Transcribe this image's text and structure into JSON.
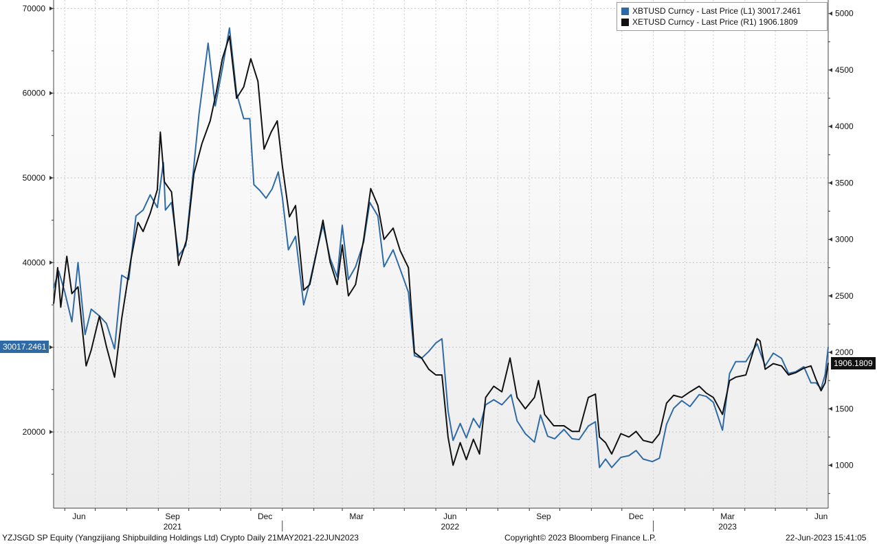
{
  "chart_data": {
    "type": "line",
    "title": "",
    "x_range": [
      "2021-05-21",
      "2023-06-22"
    ],
    "frequency": "Daily",
    "grid": true,
    "legend_placement": "top-right",
    "y_left": {
      "ticks": [
        20000,
        30000,
        40000,
        50000,
        60000,
        70000
      ],
      "tick_labels": [
        "20000",
        "",
        "40000",
        "50000",
        "60000",
        "70000"
      ],
      "range": [
        11000,
        71000
      ]
    },
    "y_right": {
      "ticks": [
        1000,
        1500,
        2000,
        2500,
        3000,
        3500,
        4000,
        4500,
        5000
      ],
      "tick_labels": [
        "1000",
        "1500",
        "2000",
        "2500",
        "3000",
        "3500",
        "4000",
        "4500",
        "5000"
      ],
      "range": [
        620,
        5120
      ]
    },
    "x_month_labels": [
      {
        "date": "2021-06-15",
        "label": "Jun"
      },
      {
        "date": "2021-09-15",
        "label": "Sep"
      },
      {
        "date": "2021-12-15",
        "label": "Dec"
      },
      {
        "date": "2022-03-15",
        "label": "Mar"
      },
      {
        "date": "2022-06-15",
        "label": "Jun"
      },
      {
        "date": "2022-09-15",
        "label": "Sep"
      },
      {
        "date": "2022-12-15",
        "label": "Dec"
      },
      {
        "date": "2023-03-15",
        "label": "Mar"
      },
      {
        "date": "2023-06-15",
        "label": "Jun"
      }
    ],
    "x_year_labels": [
      {
        "date": "2021-09-15",
        "label": "2021"
      },
      {
        "date": "2022-06-15",
        "label": "2022"
      },
      {
        "date": "2023-03-15",
        "label": "2023"
      }
    ],
    "year_dividers": [
      "2022-01-01",
      "2023-01-01"
    ],
    "series": [
      {
        "name": "XBTUSD Curncy - Last Price (L1) 30017.2461",
        "axis": "left",
        "color": "#2e6aa6",
        "last_value_label": "30017.2461",
        "points": [
          [
            "2021-05-21",
            37000
          ],
          [
            "2021-05-26",
            39000
          ],
          [
            "2021-06-01",
            36500
          ],
          [
            "2021-06-08",
            33000
          ],
          [
            "2021-06-14",
            40000
          ],
          [
            "2021-06-21",
            31500
          ],
          [
            "2021-06-27",
            34500
          ],
          [
            "2021-07-05",
            33700
          ],
          [
            "2021-07-12",
            32800
          ],
          [
            "2021-07-20",
            29800
          ],
          [
            "2021-07-27",
            38500
          ],
          [
            "2021-08-03",
            38000
          ],
          [
            "2021-08-10",
            45500
          ],
          [
            "2021-08-17",
            46200
          ],
          [
            "2021-08-24",
            48000
          ],
          [
            "2021-08-31",
            46500
          ],
          [
            "2021-09-06",
            51800
          ],
          [
            "2021-09-08",
            46200
          ],
          [
            "2021-09-14",
            47100
          ],
          [
            "2021-09-21",
            40800
          ],
          [
            "2021-09-28",
            42000
          ],
          [
            "2021-10-04",
            49000
          ],
          [
            "2021-10-11",
            57500
          ],
          [
            "2021-10-20",
            65900
          ],
          [
            "2021-10-27",
            58500
          ],
          [
            "2021-11-03",
            62900
          ],
          [
            "2021-11-10",
            67700
          ],
          [
            "2021-11-17",
            60000
          ],
          [
            "2021-11-24",
            57000
          ],
          [
            "2021-11-30",
            57000
          ],
          [
            "2021-12-04",
            49200
          ],
          [
            "2021-12-10",
            48500
          ],
          [
            "2021-12-16",
            47600
          ],
          [
            "2021-12-22",
            48700
          ],
          [
            "2021-12-28",
            50700
          ],
          [
            "2022-01-01",
            47700
          ],
          [
            "2022-01-07",
            41500
          ],
          [
            "2022-01-14",
            43100
          ],
          [
            "2022-01-22",
            35000
          ],
          [
            "2022-01-28",
            37700
          ],
          [
            "2022-02-04",
            41500
          ],
          [
            "2022-02-10",
            44400
          ],
          [
            "2022-02-17",
            40500
          ],
          [
            "2022-02-24",
            38300
          ],
          [
            "2022-03-01",
            44400
          ],
          [
            "2022-03-07",
            38000
          ],
          [
            "2022-03-14",
            39500
          ],
          [
            "2022-03-22",
            42400
          ],
          [
            "2022-03-28",
            47100
          ],
          [
            "2022-04-05",
            45500
          ],
          [
            "2022-04-11",
            39500
          ],
          [
            "2022-04-20",
            41500
          ],
          [
            "2022-04-27",
            39200
          ],
          [
            "2022-05-05",
            36500
          ],
          [
            "2022-05-11",
            29000
          ],
          [
            "2022-05-18",
            28700
          ],
          [
            "2022-05-25",
            29500
          ],
          [
            "2022-06-01",
            30500
          ],
          [
            "2022-06-07",
            31000
          ],
          [
            "2022-06-13",
            22500
          ],
          [
            "2022-06-18",
            19000
          ],
          [
            "2022-06-25",
            21000
          ],
          [
            "2022-07-01",
            19300
          ],
          [
            "2022-07-08",
            21600
          ],
          [
            "2022-07-14",
            20500
          ],
          [
            "2022-07-20",
            23200
          ],
          [
            "2022-07-28",
            23800
          ],
          [
            "2022-08-05",
            23200
          ],
          [
            "2022-08-14",
            24400
          ],
          [
            "2022-08-20",
            21300
          ],
          [
            "2022-08-28",
            19800
          ],
          [
            "2022-09-06",
            18800
          ],
          [
            "2022-09-12",
            22000
          ],
          [
            "2022-09-19",
            19500
          ],
          [
            "2022-09-26",
            19200
          ],
          [
            "2022-10-05",
            20300
          ],
          [
            "2022-10-13",
            19200
          ],
          [
            "2022-10-20",
            19100
          ],
          [
            "2022-10-29",
            20700
          ],
          [
            "2022-11-05",
            21200
          ],
          [
            "2022-11-09",
            15800
          ],
          [
            "2022-11-15",
            16800
          ],
          [
            "2022-11-21",
            15800
          ],
          [
            "2022-11-30",
            17000
          ],
          [
            "2022-12-08",
            17200
          ],
          [
            "2022-12-15",
            17800
          ],
          [
            "2022-12-22",
            16800
          ],
          [
            "2022-12-31",
            16500
          ],
          [
            "2023-01-07",
            16900
          ],
          [
            "2023-01-14",
            20900
          ],
          [
            "2023-01-21",
            22800
          ],
          [
            "2023-01-29",
            23700
          ],
          [
            "2023-02-06",
            23000
          ],
          [
            "2023-02-15",
            24400
          ],
          [
            "2023-02-22",
            24200
          ],
          [
            "2023-03-01",
            23500
          ],
          [
            "2023-03-10",
            20200
          ],
          [
            "2023-03-17",
            26900
          ],
          [
            "2023-03-23",
            28300
          ],
          [
            "2023-04-02",
            28300
          ],
          [
            "2023-04-13",
            30400
          ],
          [
            "2023-04-21",
            27800
          ],
          [
            "2023-04-29",
            29300
          ],
          [
            "2023-05-07",
            28700
          ],
          [
            "2023-05-14",
            26900
          ],
          [
            "2023-05-21",
            27100
          ],
          [
            "2023-05-29",
            27700
          ],
          [
            "2023-06-05",
            25800
          ],
          [
            "2023-06-10",
            25800
          ],
          [
            "2023-06-15",
            25100
          ],
          [
            "2023-06-19",
            26800
          ],
          [
            "2023-06-22",
            30017
          ]
        ]
      },
      {
        "name": "XETUSD Curncy - Last Price (R1) 1906.1809",
        "axis": "right",
        "color": "#111111",
        "last_value_label": "1906.1809",
        "points": [
          [
            "2021-05-21",
            2430
          ],
          [
            "2021-05-25",
            2750
          ],
          [
            "2021-05-28",
            2400
          ],
          [
            "2021-06-03",
            2850
          ],
          [
            "2021-06-08",
            2520
          ],
          [
            "2021-06-14",
            2580
          ],
          [
            "2021-06-22",
            1880
          ],
          [
            "2021-06-27",
            2020
          ],
          [
            "2021-07-05",
            2320
          ],
          [
            "2021-07-12",
            2050
          ],
          [
            "2021-07-20",
            1780
          ],
          [
            "2021-07-27",
            2300
          ],
          [
            "2021-08-05",
            2820
          ],
          [
            "2021-08-12",
            3150
          ],
          [
            "2021-08-17",
            3070
          ],
          [
            "2021-08-24",
            3230
          ],
          [
            "2021-08-31",
            3440
          ],
          [
            "2021-09-03",
            3950
          ],
          [
            "2021-09-07",
            3510
          ],
          [
            "2021-09-14",
            3420
          ],
          [
            "2021-09-21",
            2770
          ],
          [
            "2021-09-29",
            3000
          ],
          [
            "2021-10-06",
            3580
          ],
          [
            "2021-10-14",
            3850
          ],
          [
            "2021-10-22",
            4050
          ],
          [
            "2021-10-28",
            4300
          ],
          [
            "2021-11-03",
            4600
          ],
          [
            "2021-11-10",
            4800
          ],
          [
            "2021-11-17",
            4250
          ],
          [
            "2021-11-24",
            4350
          ],
          [
            "2021-12-01",
            4600
          ],
          [
            "2021-12-08",
            4400
          ],
          [
            "2021-12-14",
            3800
          ],
          [
            "2021-12-21",
            3950
          ],
          [
            "2021-12-27",
            4050
          ],
          [
            "2022-01-01",
            3650
          ],
          [
            "2022-01-08",
            3200
          ],
          [
            "2022-01-14",
            3300
          ],
          [
            "2022-01-22",
            2550
          ],
          [
            "2022-01-28",
            2600
          ],
          [
            "2022-02-04",
            2900
          ],
          [
            "2022-02-10",
            3170
          ],
          [
            "2022-02-17",
            2800
          ],
          [
            "2022-02-24",
            2600
          ],
          [
            "2022-03-01",
            2950
          ],
          [
            "2022-03-07",
            2500
          ],
          [
            "2022-03-14",
            2600
          ],
          [
            "2022-03-22",
            3000
          ],
          [
            "2022-03-29",
            3450
          ],
          [
            "2022-04-05",
            3300
          ],
          [
            "2022-04-11",
            3000
          ],
          [
            "2022-04-20",
            3100
          ],
          [
            "2022-04-27",
            2900
          ],
          [
            "2022-05-05",
            2750
          ],
          [
            "2022-05-11",
            2000
          ],
          [
            "2022-05-18",
            1950
          ],
          [
            "2022-05-25",
            1850
          ],
          [
            "2022-06-01",
            1800
          ],
          [
            "2022-06-07",
            1800
          ],
          [
            "2022-06-13",
            1250
          ],
          [
            "2022-06-18",
            1000
          ],
          [
            "2022-06-25",
            1200
          ],
          [
            "2022-07-01",
            1050
          ],
          [
            "2022-07-08",
            1230
          ],
          [
            "2022-07-14",
            1100
          ],
          [
            "2022-07-20",
            1600
          ],
          [
            "2022-07-28",
            1700
          ],
          [
            "2022-08-05",
            1650
          ],
          [
            "2022-08-13",
            1950
          ],
          [
            "2022-08-20",
            1600
          ],
          [
            "2022-08-28",
            1500
          ],
          [
            "2022-09-06",
            1600
          ],
          [
            "2022-09-10",
            1750
          ],
          [
            "2022-09-16",
            1450
          ],
          [
            "2022-09-25",
            1350
          ],
          [
            "2022-10-05",
            1350
          ],
          [
            "2022-10-13",
            1300
          ],
          [
            "2022-10-20",
            1300
          ],
          [
            "2022-10-29",
            1600
          ],
          [
            "2022-11-05",
            1630
          ],
          [
            "2022-11-09",
            1250
          ],
          [
            "2022-11-15",
            1200
          ],
          [
            "2022-11-21",
            1100
          ],
          [
            "2022-11-30",
            1280
          ],
          [
            "2022-12-08",
            1250
          ],
          [
            "2022-12-15",
            1300
          ],
          [
            "2022-12-22",
            1220
          ],
          [
            "2022-12-31",
            1200
          ],
          [
            "2023-01-07",
            1280
          ],
          [
            "2023-01-14",
            1550
          ],
          [
            "2023-01-21",
            1620
          ],
          [
            "2023-01-29",
            1600
          ],
          [
            "2023-02-06",
            1650
          ],
          [
            "2023-02-15",
            1700
          ],
          [
            "2023-02-22",
            1640
          ],
          [
            "2023-03-01",
            1600
          ],
          [
            "2023-03-10",
            1450
          ],
          [
            "2023-03-17",
            1750
          ],
          [
            "2023-03-23",
            1780
          ],
          [
            "2023-04-02",
            1800
          ],
          [
            "2023-04-13",
            2120
          ],
          [
            "2023-04-16",
            2100
          ],
          [
            "2023-04-21",
            1850
          ],
          [
            "2023-04-29",
            1900
          ],
          [
            "2023-05-07",
            1880
          ],
          [
            "2023-05-14",
            1800
          ],
          [
            "2023-05-21",
            1820
          ],
          [
            "2023-05-29",
            1860
          ],
          [
            "2023-06-05",
            1880
          ],
          [
            "2023-06-10",
            1760
          ],
          [
            "2023-06-15",
            1660
          ],
          [
            "2023-06-19",
            1730
          ],
          [
            "2023-06-22",
            1906
          ]
        ]
      }
    ]
  },
  "footer": {
    "left": "YZJSGD SP Equity (Yangzijiang Shipbuilding Holdings Ltd) Crypto  Daily 21MAY2021-22JUN2023",
    "center": "Copyright© 2023 Bloomberg Finance L.P.",
    "right": "22-Jun-2023 15:41:05"
  },
  "colors": {
    "background_top": "#ffffff",
    "background_bottom": "#ededed",
    "grid": "#bfbfbf",
    "series_left": "#2e6aa6",
    "series_right": "#111111",
    "left_tag_bg": "#2e6aa6",
    "right_tag_bg": "#111111"
  }
}
